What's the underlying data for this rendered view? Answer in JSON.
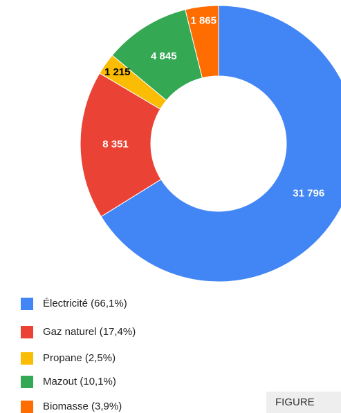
{
  "chart_data": {
    "type": "donut",
    "categories": [
      "Électricité (66,1%)",
      "Gaz naturel (17,4%)",
      "Propane (2,5%)",
      "Mazout (10,1%)",
      "Biomasse (3,9%)"
    ],
    "values": [
      31796,
      8351,
      1215,
      4845,
      1865
    ],
    "value_labels": [
      "31 796",
      "8 351",
      "1 215",
      "4 845",
      "1 865"
    ],
    "colors": [
      "#4285f4",
      "#ea4335",
      "#fbbc04",
      "#34a853",
      "#ff6d01"
    ],
    "label_colors": [
      "#ffffff",
      "#ffffff",
      "#000000",
      "#ffffff",
      "#ffffff"
    ],
    "legend": "bottom-left"
  },
  "figure_label": "FIGURE"
}
